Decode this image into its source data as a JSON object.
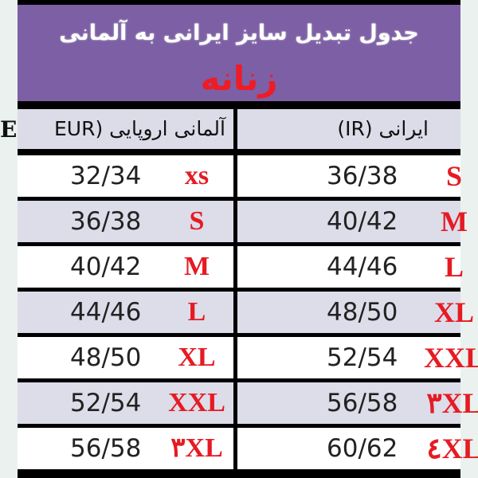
{
  "title": "جدول تبدیل سایز ایرانی به آلمانی",
  "subtitle": "زنانه",
  "columns": {
    "left": "آلمانی اروپایی (EUR",
    "left_overflow": "E",
    "right": "ایرانی (IR)"
  },
  "rows": [
    {
      "eur": "32/34",
      "eur_size": "xs",
      "ir": "36/38",
      "ir_size": "S"
    },
    {
      "eur": "36/38",
      "eur_size": "S",
      "ir": "40/42",
      "ir_size": "M"
    },
    {
      "eur": "40/42",
      "eur_size": "M",
      "ir": "44/46",
      "ir_size": "L"
    },
    {
      "eur": "44/46",
      "eur_size": "L",
      "ir": "48/50",
      "ir_size": "XL"
    },
    {
      "eur": "48/50",
      "eur_size": "XL",
      "ir": "52/54",
      "ir_size": "XXL"
    },
    {
      "eur": "52/54",
      "eur_size": "XXL",
      "ir": "56/58",
      "ir_size": "۳XL"
    },
    {
      "eur": "56/58",
      "eur_size": "۳XL",
      "ir": "60/62",
      "ir_size": "٤XL"
    }
  ],
  "colors": {
    "header": "#7d5fa5",
    "size_text": "#e51b23",
    "alt_row": "#dddce9"
  }
}
